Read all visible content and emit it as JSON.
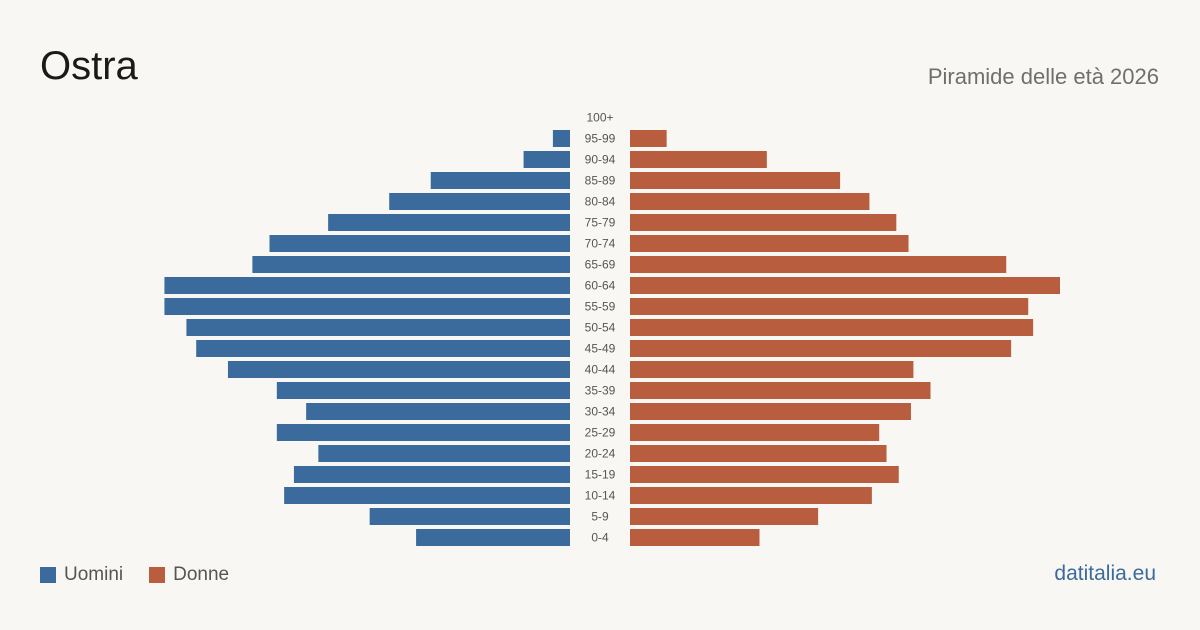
{
  "title": "Ostra",
  "subtitle": "Piramide delle età 2026",
  "brand": "datitalia.eu",
  "colors": {
    "men": "#3b6b9c",
    "women": "#b85d3e",
    "background": "#f9f7f3",
    "label": "#555555"
  },
  "legend": {
    "men_label": "Uomini",
    "women_label": "Donne"
  },
  "chart_data": {
    "type": "bar",
    "orientation": "horizontal-mirrored",
    "categories": [
      "100+",
      "95-99",
      "90-94",
      "85-89",
      "80-84",
      "75-79",
      "70-74",
      "65-69",
      "60-64",
      "55-59",
      "50-54",
      "45-49",
      "40-44",
      "35-39",
      "30-34",
      "25-29",
      "20-24",
      "15-19",
      "10-14",
      "5-9",
      "0-4"
    ],
    "series": [
      {
        "name": "Uomini",
        "values": [
          0,
          7,
          19,
          57,
          74,
          99,
          123,
          130,
          166,
          166,
          157,
          153,
          140,
          120,
          108,
          120,
          103,
          113,
          117,
          82,
          63
        ]
      },
      {
        "name": "Donne",
        "values": [
          0,
          15,
          56,
          86,
          98,
          109,
          114,
          154,
          176,
          163,
          165,
          156,
          116,
          123,
          115,
          102,
          105,
          110,
          99,
          77,
          53
        ]
      }
    ],
    "xlim": [
      0,
      176
    ]
  }
}
